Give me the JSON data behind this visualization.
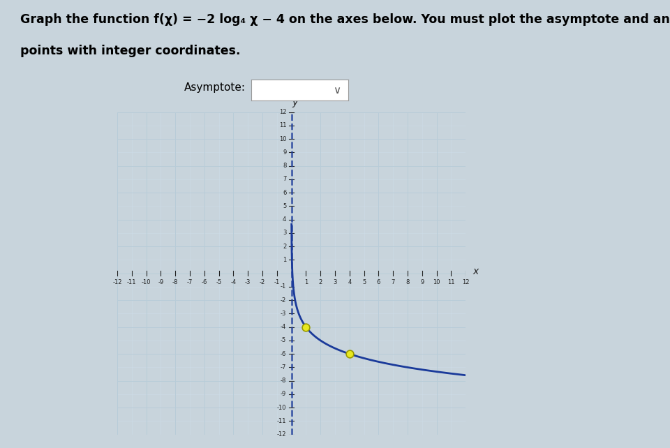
{
  "title_line1": "Graph the function f(χ) = −2 log₄ χ − 4 on the axes below. You must plot the asymptote and any two",
  "title_line2": "points with integer coordinates.",
  "asymptote_label": "Asymptote:",
  "asymptote_x": 0,
  "xmin": -12,
  "xmax": 12,
  "ymin": -12,
  "ymax": 12,
  "grid_color": "#b8ccd8",
  "grid_color2": "#ccdce8",
  "background_color": "#dce8f0",
  "outer_bg": "#c8d8e4",
  "axis_color": "#222222",
  "asymptote_color": "#1a3a9a",
  "curve_color": "#1a3a9a",
  "point_color": "#e8e820",
  "point_edge_color": "#999900",
  "points": [
    [
      1,
      -4
    ],
    [
      4,
      -6
    ]
  ],
  "point_size": 60,
  "title_fontsize": 12.5,
  "tick_fontsize": 6,
  "label_fontsize": 10,
  "fig_bg_color": "#c8d4dc"
}
